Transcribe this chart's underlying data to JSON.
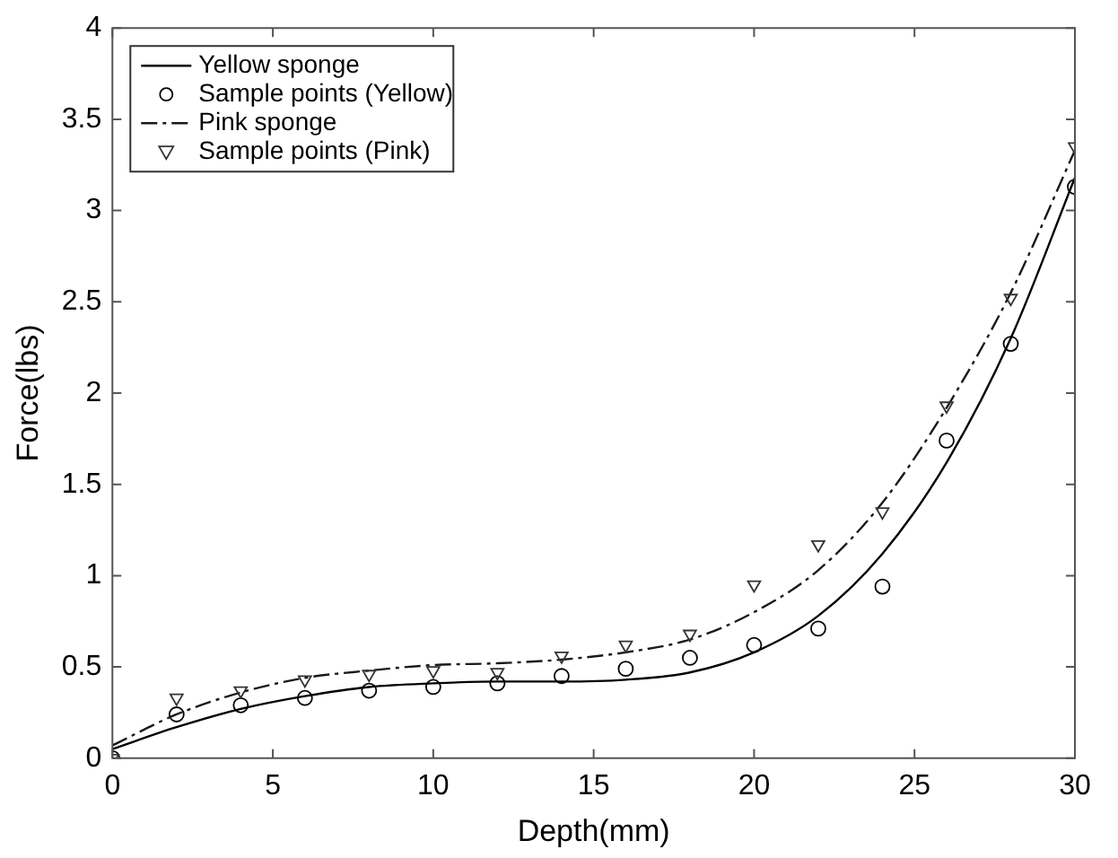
{
  "chart_data": {
    "type": "line",
    "xlabel": "Depth(mm)",
    "ylabel": "Force(lbs)",
    "xlim": [
      0,
      30
    ],
    "xticks": [
      0,
      5,
      10,
      15,
      20,
      25,
      30
    ],
    "ylim": [
      0,
      4
    ],
    "yticks": [
      0,
      0.5,
      1,
      1.5,
      2,
      2.5,
      3,
      3.5,
      4
    ],
    "grid": false,
    "legend": "top left",
    "series": [
      {
        "name": "Yellow sponge",
        "type": "line",
        "color": "#000000",
        "marker": "none",
        "line_style": "solid",
        "x": [
          0,
          2,
          4,
          6,
          8,
          10,
          12,
          14,
          16,
          18,
          20,
          22,
          24,
          26,
          28,
          30
        ],
        "values": [
          0.05,
          0.17,
          0.27,
          0.34,
          0.39,
          0.41,
          0.42,
          0.42,
          0.43,
          0.47,
          0.58,
          0.78,
          1.12,
          1.62,
          2.3,
          3.18
        ]
      },
      {
        "name": "Sample points (Yellow)",
        "type": "scatter",
        "color": "#000000",
        "marker": "circle",
        "x": [
          0,
          2,
          4,
          6,
          8,
          10,
          12,
          14,
          16,
          18,
          20,
          22,
          24,
          26,
          28,
          30
        ],
        "values": [
          0,
          0.24,
          0.29,
          0.33,
          0.37,
          0.39,
          0.41,
          0.45,
          0.49,
          0.55,
          0.62,
          0.71,
          0.94,
          1.74,
          2.27,
          3.13
        ]
      },
      {
        "name": "Pink sponge",
        "type": "line",
        "color": "#1a1a1a",
        "marker": "none",
        "line_style": "dashed",
        "x": [
          0,
          2,
          4,
          6,
          8,
          10,
          12,
          14,
          16,
          18,
          20,
          22,
          24,
          26,
          28,
          30
        ],
        "values": [
          0.07,
          0.24,
          0.36,
          0.44,
          0.48,
          0.51,
          0.52,
          0.54,
          0.58,
          0.65,
          0.8,
          1.03,
          1.4,
          1.92,
          2.55,
          3.33
        ]
      },
      {
        "name": "Sample points (Pink)",
        "type": "scatter",
        "color": "#333333",
        "marker": "triangle",
        "x": [
          0,
          2,
          4,
          6,
          8,
          10,
          12,
          14,
          16,
          18,
          20,
          22,
          24,
          26,
          28,
          30
        ],
        "values": [
          0,
          0.33,
          0.37,
          0.43,
          0.46,
          0.48,
          0.47,
          0.56,
          0.62,
          0.68,
          0.95,
          1.17,
          1.35,
          1.93,
          2.52,
          3.35
        ]
      }
    ]
  }
}
